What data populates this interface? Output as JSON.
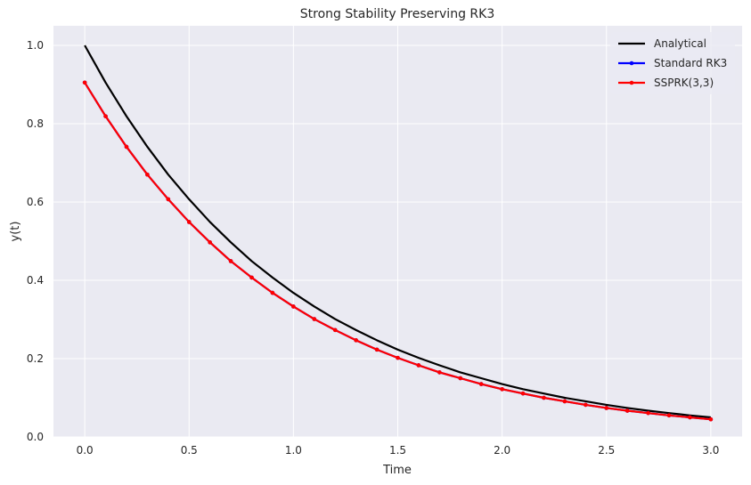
{
  "chart_data": {
    "type": "line",
    "title": "Strong Stability Preserving RK3",
    "xlabel": "Time",
    "ylabel": "y(t)",
    "xlim": [
      -0.15,
      3.15
    ],
    "ylim": [
      0.0,
      1.05
    ],
    "xticks": [
      "0.0",
      "0.5",
      "1.0",
      "1.5",
      "2.0",
      "2.5",
      "3.0"
    ],
    "yticks": [
      "0.0",
      "0.2",
      "0.4",
      "0.6",
      "0.8",
      "1.0"
    ],
    "grid": true,
    "legend_position": "top-right",
    "x": [
      0.0,
      0.1,
      0.2,
      0.3,
      0.4,
      0.5,
      0.6,
      0.7,
      0.8,
      0.9,
      1.0,
      1.1,
      1.2,
      1.3,
      1.4,
      1.5,
      1.6,
      1.7,
      1.8,
      1.9,
      2.0,
      2.1,
      2.2,
      2.3,
      2.4,
      2.5,
      2.6,
      2.7,
      2.8,
      2.9,
      3.0
    ],
    "series": [
      {
        "name": "Analytical",
        "color": "#000000",
        "markers": false,
        "values": [
          1.0,
          0.905,
          0.819,
          0.741,
          0.67,
          0.607,
          0.549,
          0.497,
          0.449,
          0.407,
          0.368,
          0.333,
          0.301,
          0.273,
          0.247,
          0.223,
          0.202,
          0.183,
          0.165,
          0.15,
          0.135,
          0.122,
          0.111,
          0.1,
          0.091,
          0.082,
          0.074,
          0.067,
          0.061,
          0.055,
          0.05
        ]
      },
      {
        "name": "Standard RK3",
        "color": "#0000ff",
        "markers": true,
        "values": [
          0.905,
          0.819,
          0.741,
          0.67,
          0.607,
          0.549,
          0.497,
          0.449,
          0.407,
          0.368,
          0.333,
          0.301,
          0.273,
          0.247,
          0.223,
          0.202,
          0.183,
          0.165,
          0.15,
          0.135,
          0.122,
          0.111,
          0.1,
          0.091,
          0.082,
          0.074,
          0.067,
          0.061,
          0.055,
          0.05,
          0.045
        ]
      },
      {
        "name": "SSPRK(3,3)",
        "color": "#ff0000",
        "markers": true,
        "values": [
          0.905,
          0.819,
          0.741,
          0.67,
          0.607,
          0.549,
          0.497,
          0.449,
          0.407,
          0.368,
          0.333,
          0.301,
          0.273,
          0.247,
          0.223,
          0.202,
          0.183,
          0.165,
          0.15,
          0.135,
          0.122,
          0.111,
          0.1,
          0.091,
          0.082,
          0.074,
          0.067,
          0.061,
          0.055,
          0.05,
          0.045
        ]
      }
    ],
    "colors": {
      "plot_background": "#eaeaf2",
      "grid": "#ffffff"
    }
  }
}
